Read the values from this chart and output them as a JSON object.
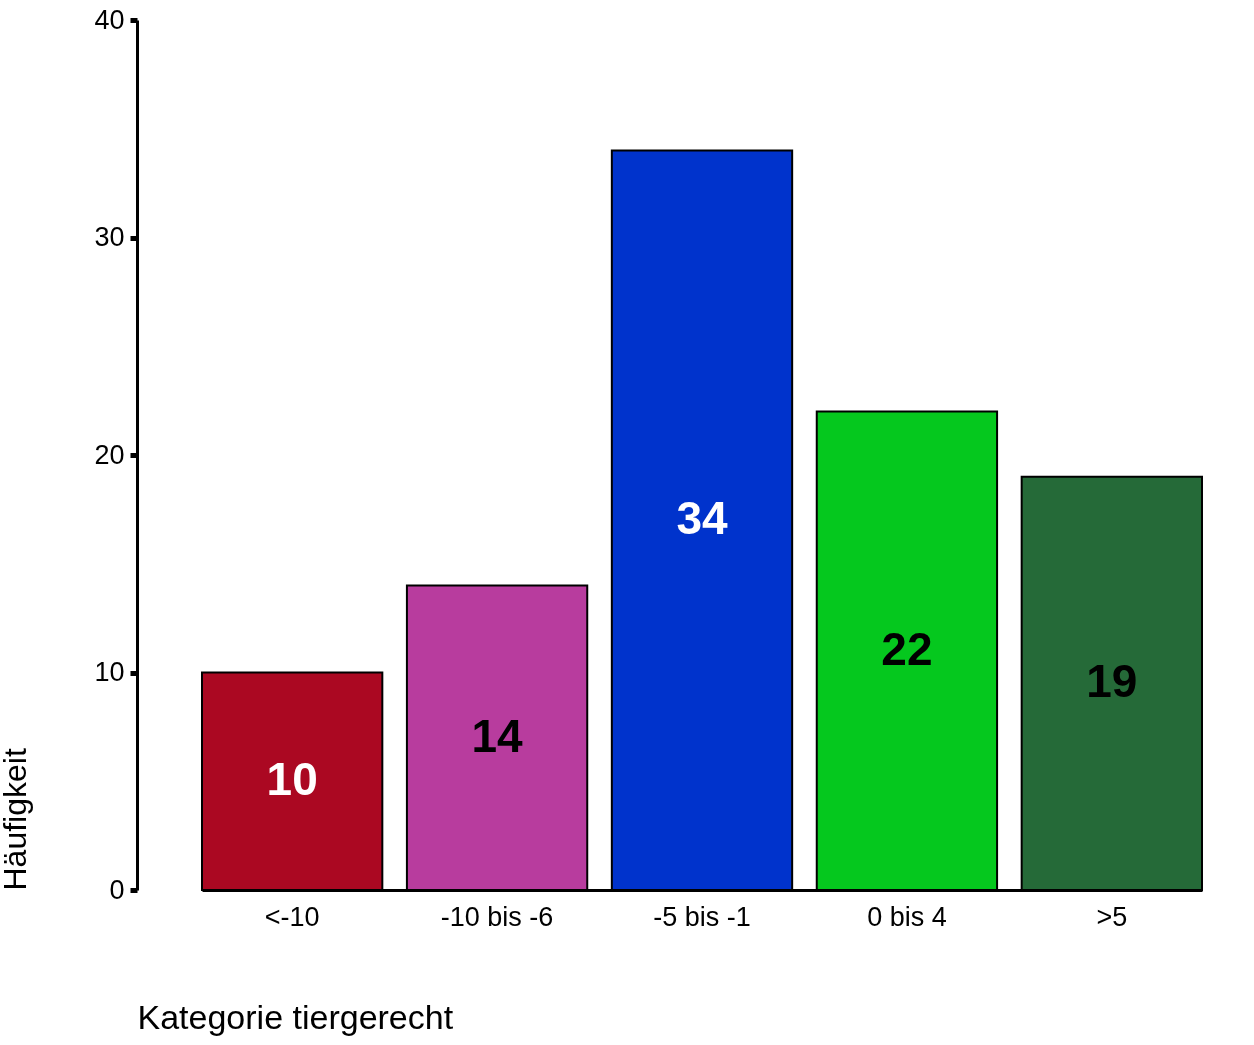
{
  "chart_data": {
    "type": "bar",
    "xlabel": "Kategorie tiergerecht",
    "ylabel": "Häufigkeit",
    "categories": [
      "<-10",
      "-10 bis -6",
      "-5 bis -1",
      "0 bis 4",
      ">5"
    ],
    "values": [
      10,
      14,
      34,
      22,
      19
    ],
    "colors": [
      "#ab0822",
      "#b83c9e",
      "#0033cc",
      "#05c81e",
      "#256a38"
    ],
    "ylim": [
      0,
      40
    ],
    "yticks": [
      0,
      10,
      20,
      30,
      40
    ],
    "grid": false,
    "data_labels": true
  }
}
